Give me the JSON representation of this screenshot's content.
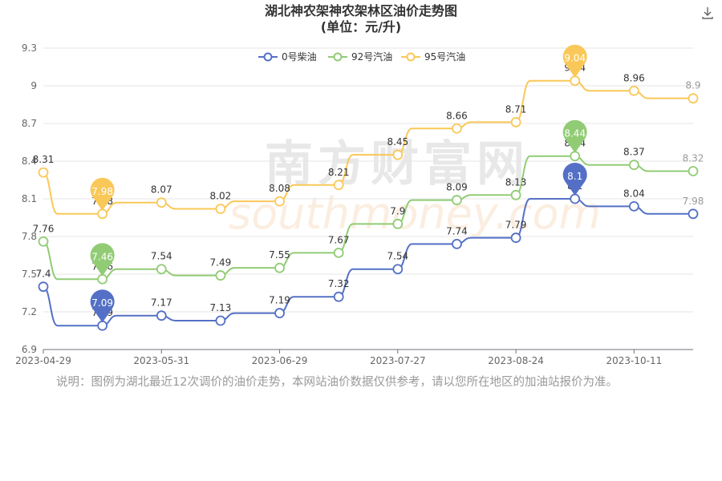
{
  "page": {
    "title_line1": "湖北神农架神农架林区油价走势图",
    "title_line2": "(单位：元/升)",
    "note": "说明：图例为湖北最近12次调价的油价走势，本网站油价数据仅供参考，请以您所在地区的加油站报价为准。",
    "watermark_cn": "南方财富网",
    "watermark_en": "southmoney.com",
    "download_icon": "download-icon"
  },
  "chart_data": {
    "type": "line",
    "title": "湖北神农架神农架林区油价走势图",
    "subtitle": "(单位：元/升)",
    "legend_position": "top-center",
    "grid": true,
    "ylim": [
      6.9,
      9.3
    ],
    "y_ticks": [
      "6.9",
      "7.2",
      "7.5",
      "7.8",
      "8.1",
      "8.4",
      "8.7",
      "9",
      "9.3"
    ],
    "x_tick_labels": [
      "2023-04-29",
      "2023-05-31",
      "2023-06-29",
      "2023-07-27",
      "2023-08-24",
      "2023-10-11"
    ],
    "x": [
      "2023-04-29",
      "2023-05-14",
      "2023-05-31",
      "2023-06-14",
      "2023-06-29",
      "2023-07-13",
      "2023-07-27",
      "2023-08-10",
      "2023-08-24",
      "2023-09-08",
      "2023-10-11",
      "2023-10-25"
    ],
    "series": [
      {
        "name": "0号柴油",
        "color": "#5470c6",
        "values": [
          7.4,
          7.09,
          7.17,
          7.13,
          7.19,
          7.32,
          7.54,
          7.74,
          7.79,
          8.1,
          8.04,
          7.98
        ],
        "min_label": "7.09",
        "max_label": "8.1"
      },
      {
        "name": "92号汽油",
        "color": "#91cc75",
        "values": [
          7.76,
          7.46,
          7.54,
          7.49,
          7.55,
          7.67,
          7.9,
          8.09,
          8.13,
          8.44,
          8.37,
          8.32
        ],
        "min_label": "7.46",
        "max_label": "8.44"
      },
      {
        "name": "95号汽油",
        "color": "#fac858",
        "values": [
          8.31,
          7.98,
          8.07,
          8.02,
          8.08,
          8.21,
          8.45,
          8.66,
          8.71,
          9.04,
          8.96,
          8.9
        ],
        "min_label": "7.98",
        "max_label": "9.04"
      }
    ]
  }
}
